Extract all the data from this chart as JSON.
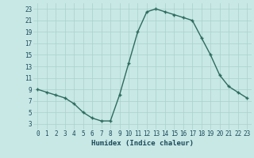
{
  "x": [
    0,
    1,
    2,
    3,
    4,
    5,
    6,
    7,
    8,
    9,
    10,
    11,
    12,
    13,
    14,
    15,
    16,
    17,
    18,
    19,
    20,
    21,
    22,
    23
  ],
  "y": [
    9,
    8.5,
    8,
    7.5,
    6.5,
    5,
    4,
    3.5,
    3.5,
    8,
    13.5,
    19,
    22.5,
    23,
    22.5,
    22,
    21.5,
    21,
    18,
    15,
    11.5,
    9.5,
    8.5,
    7.5
  ],
  "line_color": "#2d6b5e",
  "marker": "+",
  "marker_size": 3.5,
  "marker_edge_width": 1.0,
  "bg_color": "#c8e8e5",
  "grid_color": "#aad0cc",
  "xlabel": "Humidex (Indice chaleur)",
  "tick_label_color": "#1a4a5a",
  "xlim": [
    -0.5,
    23.5
  ],
  "ylim": [
    2,
    24
  ],
  "yticks": [
    3,
    5,
    7,
    9,
    11,
    13,
    15,
    17,
    19,
    21,
    23
  ],
  "xticks": [
    0,
    1,
    2,
    3,
    4,
    5,
    6,
    7,
    8,
    9,
    10,
    11,
    12,
    13,
    14,
    15,
    16,
    17,
    18,
    19,
    20,
    21,
    22,
    23
  ],
  "line_width": 1.0
}
